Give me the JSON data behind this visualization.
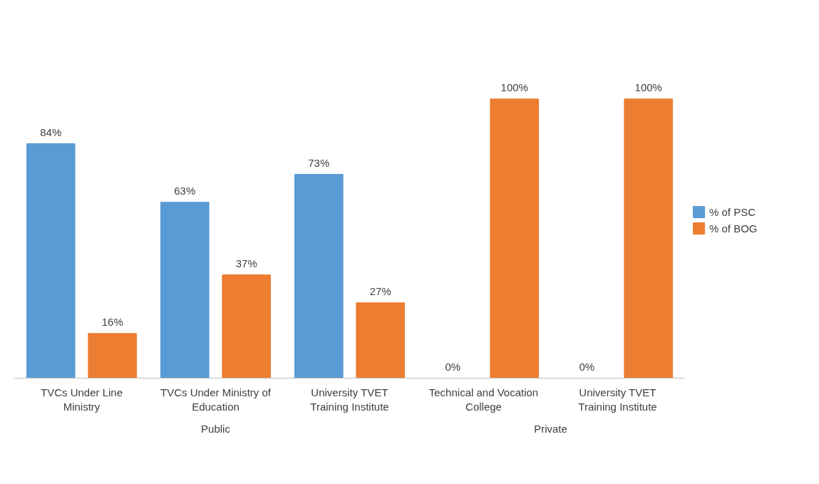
{
  "chart_data": {
    "type": "bar",
    "categories": [
      "TVCs Under Line Ministry",
      "TVCs Under Ministry of Education",
      "University TVET Training Institute",
      "Technical and Vocation College",
      "University TVET Training Institute"
    ],
    "series": [
      {
        "name": "% of PSC",
        "color": "#5b9bd5",
        "values": [
          84,
          63,
          73,
          0,
          0
        ],
        "value_labels": [
          "84%",
          "63%",
          "73%",
          "0%",
          "0%"
        ]
      },
      {
        "name": "% of BOG",
        "color": "#ed7d31",
        "values": [
          16,
          37,
          27,
          100,
          100
        ],
        "value_labels": [
          "16%",
          "37%",
          "27%",
          "100%",
          "100%"
        ]
      }
    ],
    "annotations": [
      "Public",
      "Private"
    ],
    "legend": "right",
    "grid": false
  }
}
